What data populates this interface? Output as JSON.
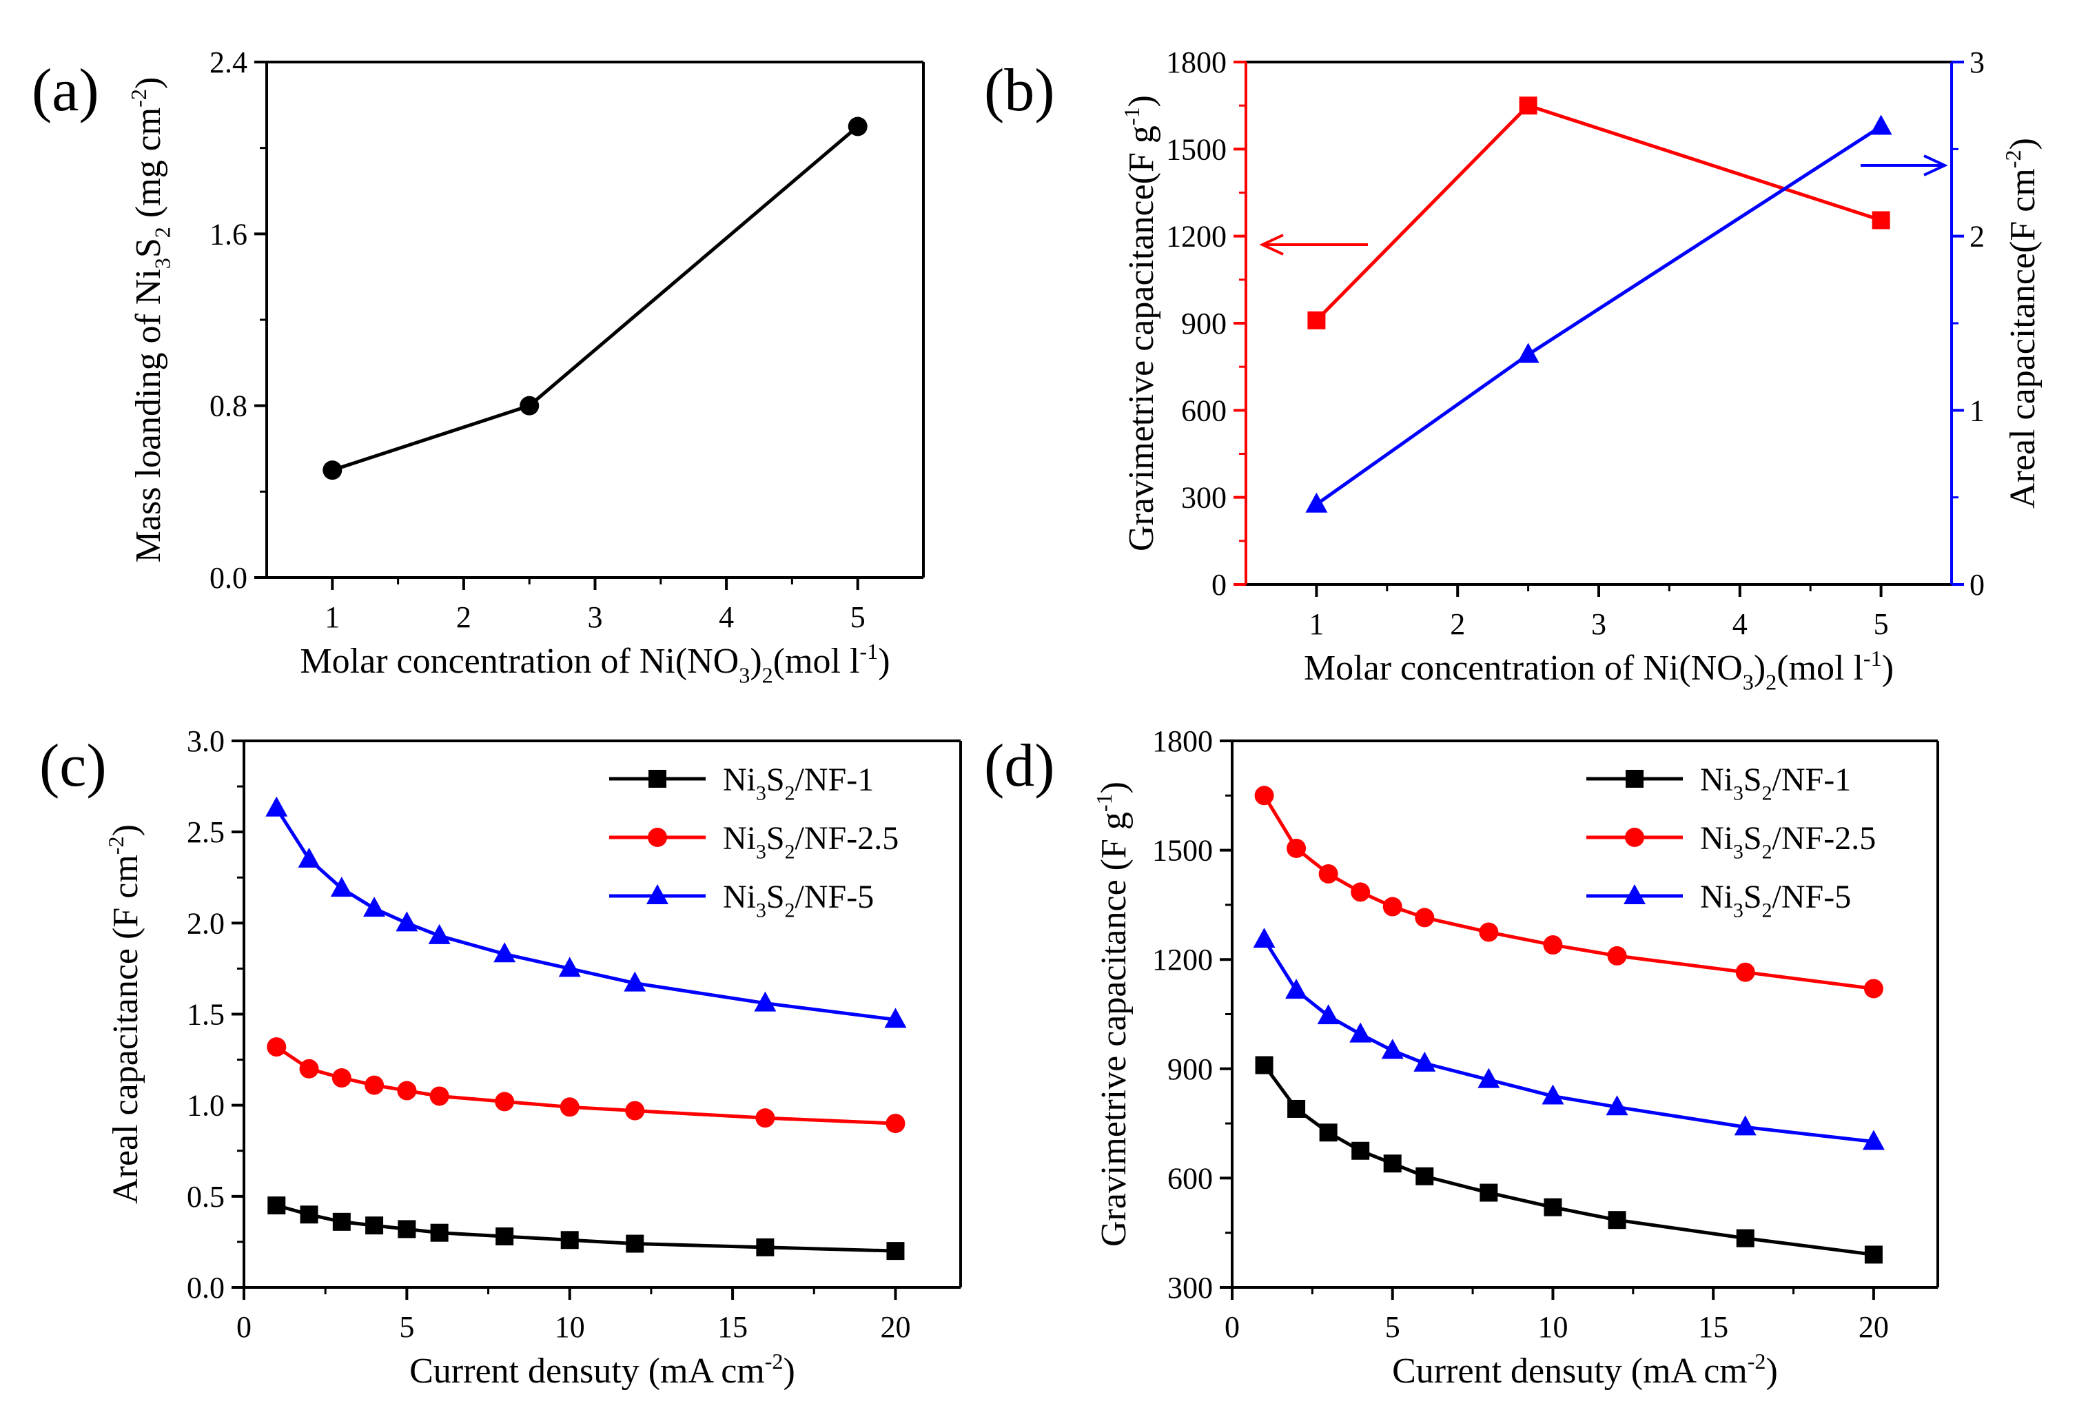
{
  "chart_data": [
    {
      "panel": "(a)",
      "type": "line",
      "xlabel": "Molar  concentration of Ni(NO3)2(mol l-1)",
      "ylabel": "Mass loanding of Ni3S2 (mg cm-2)",
      "xlim": [
        0.5,
        5.5
      ],
      "ylim": [
        0,
        2.4
      ],
      "xticks": [
        1,
        2,
        3,
        4,
        5
      ],
      "yticks": [
        0.0,
        0.8,
        1.6,
        2.4
      ],
      "series": [
        {
          "name": "Mass loading",
          "color": "#000000",
          "marker": "circle",
          "x": [
            1,
            2.5,
            5
          ],
          "y": [
            0.5,
            0.8,
            2.1
          ]
        }
      ]
    },
    {
      "panel": "(b)",
      "type": "line",
      "xlabel": "Molar  concentration of Ni(NO3)2(mol l-1)",
      "ylabel_left": "Gravimetrive capacitance(F g-1)",
      "ylabel_right": "Areal capacitance(F cm-2)",
      "xlim": [
        0.5,
        5.5
      ],
      "ylim_left": [
        0,
        1800
      ],
      "ylim_right": [
        0,
        3
      ],
      "xticks": [
        1,
        2,
        3,
        4,
        5
      ],
      "yticks_left": [
        0,
        300,
        600,
        900,
        1200,
        1500,
        1800
      ],
      "yticks_right": [
        0,
        1,
        2,
        3
      ],
      "series": [
        {
          "name": "Gravimetric capacitance",
          "axis": "left",
          "color": "#ff0000",
          "marker": "square",
          "x": [
            1,
            2.5,
            5
          ],
          "y": [
            910,
            1650,
            1255
          ]
        },
        {
          "name": "Areal capacitance",
          "axis": "right",
          "color": "#0000ff",
          "marker": "triangle",
          "x": [
            1,
            2.5,
            5
          ],
          "y": [
            0.46,
            1.32,
            2.63
          ]
        }
      ]
    },
    {
      "panel": "(c)",
      "type": "line",
      "xlabel": "Current densuty (mA cm-2)",
      "ylabel": "Areal  capacitance (F cm-2)",
      "xlim": [
        0,
        22
      ],
      "ylim": [
        0,
        3.0
      ],
      "xticks": [
        0,
        5,
        10,
        15,
        20
      ],
      "yticks": [
        0.0,
        0.5,
        1.0,
        1.5,
        2.0,
        2.5,
        3.0
      ],
      "legend": "top-right",
      "series": [
        {
          "name": "Ni3S2/NF-1",
          "color": "#000000",
          "marker": "square",
          "x": [
            1,
            2,
            3,
            4,
            5,
            6,
            8,
            10,
            12,
            16,
            20
          ],
          "y": [
            0.45,
            0.4,
            0.36,
            0.34,
            0.32,
            0.3,
            0.28,
            0.26,
            0.24,
            0.22,
            0.2
          ]
        },
        {
          "name": "Ni3S2/NF-2.5",
          "color": "#ff0000",
          "marker": "circle",
          "x": [
            1,
            2,
            3,
            4,
            5,
            6,
            8,
            10,
            12,
            16,
            20
          ],
          "y": [
            1.32,
            1.2,
            1.15,
            1.11,
            1.08,
            1.05,
            1.02,
            0.99,
            0.97,
            0.93,
            0.9
          ]
        },
        {
          "name": "Ni3S2/NF-5",
          "color": "#0000ff",
          "marker": "triangle",
          "x": [
            1,
            2,
            3,
            4,
            5,
            6,
            8,
            10,
            12,
            16,
            20
          ],
          "y": [
            2.63,
            2.35,
            2.19,
            2.08,
            2.0,
            1.93,
            1.83,
            1.75,
            1.67,
            1.56,
            1.47
          ]
        }
      ]
    },
    {
      "panel": "(d)",
      "type": "line",
      "xlabel": "Current densuty (mA cm-2)",
      "ylabel": "Gravimetrive capacitance (F g-1)",
      "xlim": [
        0,
        22
      ],
      "ylim": [
        300,
        1800
      ],
      "xticks": [
        0,
        5,
        10,
        15,
        20
      ],
      "yticks": [
        300,
        600,
        900,
        1200,
        1500,
        1800
      ],
      "legend": "top-right",
      "series": [
        {
          "name": "Ni3S2/NF-1",
          "color": "#000000",
          "marker": "square",
          "x": [
            1,
            2,
            3,
            4,
            5,
            6,
            8,
            10,
            12,
            16,
            20
          ],
          "y": [
            910,
            790,
            725,
            675,
            640,
            605,
            560,
            520,
            485,
            435,
            390
          ]
        },
        {
          "name": "Ni3S2/NF-2.5",
          "color": "#ff0000",
          "marker": "circle",
          "x": [
            1,
            2,
            3,
            4,
            5,
            6,
            8,
            10,
            12,
            16,
            20
          ],
          "y": [
            1650,
            1505,
            1435,
            1385,
            1345,
            1315,
            1275,
            1240,
            1210,
            1165,
            1120
          ]
        },
        {
          "name": "Ni3S2/NF-5",
          "color": "#0000ff",
          "marker": "triangle",
          "x": [
            1,
            2,
            3,
            4,
            5,
            6,
            8,
            10,
            12,
            16,
            20
          ],
          "y": [
            1255,
            1115,
            1045,
            995,
            950,
            915,
            870,
            825,
            795,
            740,
            700
          ]
        }
      ]
    }
  ]
}
